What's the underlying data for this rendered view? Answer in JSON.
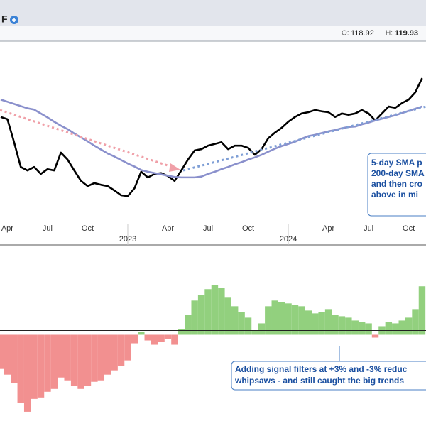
{
  "header": {
    "symbol": "F",
    "open_label": "O:",
    "open": "118.92",
    "high_label": "H:",
    "high": "119.93"
  },
  "chart_data": [
    {
      "type": "line",
      "categories": [
        null,
        "Apr",
        null,
        null,
        null,
        null,
        null,
        "Jul",
        null,
        null,
        null,
        null,
        null,
        "Oct",
        null,
        null,
        null,
        null,
        null,
        "2023",
        null,
        null,
        null,
        null,
        null,
        "Apr",
        null,
        null,
        null,
        null,
        null,
        "Jul",
        null,
        null,
        null,
        null,
        null,
        "Oct",
        null,
        null,
        null,
        null,
        null,
        "2024",
        null,
        null,
        null,
        null,
        null,
        "Apr",
        null,
        null,
        null,
        null,
        null,
        "Jul",
        null,
        null,
        null,
        null,
        null,
        "Oct",
        null,
        null
      ],
      "ylim": [
        85,
        125
      ],
      "series": [
        {
          "color": "#000000",
          "values": [
            107.9,
            107.4,
            102.1,
            96.4,
            95.6,
            96.4,
            94.8,
            95.9,
            95.6,
            99.7,
            98.1,
            95.6,
            93.2,
            92.0,
            92.7,
            92.3,
            92.0,
            91.0,
            89.9,
            89.7,
            91.5,
            95.3,
            94.0,
            94.8,
            95.0,
            94.3,
            93.2,
            95.6,
            98.1,
            100.2,
            100.5,
            101.3,
            101.7,
            102.1,
            100.5,
            101.3,
            101.3,
            100.8,
            99.2,
            100.5,
            103.0,
            104.3,
            105.4,
            106.8,
            107.9,
            108.7,
            109.0,
            109.5,
            109.2,
            109.0,
            107.9,
            108.7,
            108.4,
            108.7,
            109.5,
            108.7,
            107.1,
            108.7,
            110.3,
            110.0,
            111.1,
            111.9,
            113.6,
            116.8
          ]
        },
        {
          "color": "#8a90cc",
          "values": [
            111.9,
            111.4,
            110.9,
            110.4,
            109.9,
            109.6,
            108.7,
            107.8,
            106.8,
            105.9,
            105.1,
            104.1,
            103.2,
            102.3,
            101.3,
            100.4,
            99.5,
            98.8,
            98.0,
            97.2,
            96.5,
            95.7,
            95.3,
            95.0,
            94.7,
            94.4,
            94.1,
            94.0,
            94.0,
            94.0,
            94.2,
            94.8,
            95.3,
            95.9,
            96.4,
            97.0,
            97.5,
            98.1,
            98.6,
            99.2,
            99.9,
            100.6,
            101.2,
            101.7,
            102.2,
            102.9,
            103.5,
            103.8,
            104.2,
            104.6,
            104.9,
            105.3,
            105.6,
            105.7,
            106.2,
            106.6,
            107.1,
            107.5,
            107.9,
            108.3,
            108.8,
            109.3,
            109.8,
            110.3
          ]
        }
      ],
      "annotation": [
        "5-day SMA p",
        "200-day SMA",
        "and then cro",
        "above in mi"
      ]
    },
    {
      "type": "bar",
      "ylim": [
        -64,
        63
      ],
      "color": "#92d07e",
      "negative_color": "#f29090",
      "values": [
        -24,
        -28,
        -34,
        -48,
        -54,
        -45,
        -44,
        -40,
        -38,
        -30,
        -32,
        -36,
        -38,
        -36,
        -33,
        -32,
        -28,
        -25,
        -22,
        -18,
        -6,
        2,
        -4,
        -7,
        -5,
        -3,
        -7,
        4,
        14,
        24,
        28,
        32,
        35,
        33,
        26,
        20,
        16,
        12,
        3,
        8,
        20,
        24,
        23,
        22,
        21,
        20,
        17,
        15,
        16,
        18,
        14,
        13,
        12,
        10,
        9,
        8,
        -2,
        6,
        9,
        8,
        10,
        12,
        18,
        34
      ],
      "hlines": [
        3,
        -3
      ],
      "annotation": [
        "Adding signal filters at +3% and -3% reduc",
        "whipsaws - and still caught the big trends"
      ]
    }
  ]
}
